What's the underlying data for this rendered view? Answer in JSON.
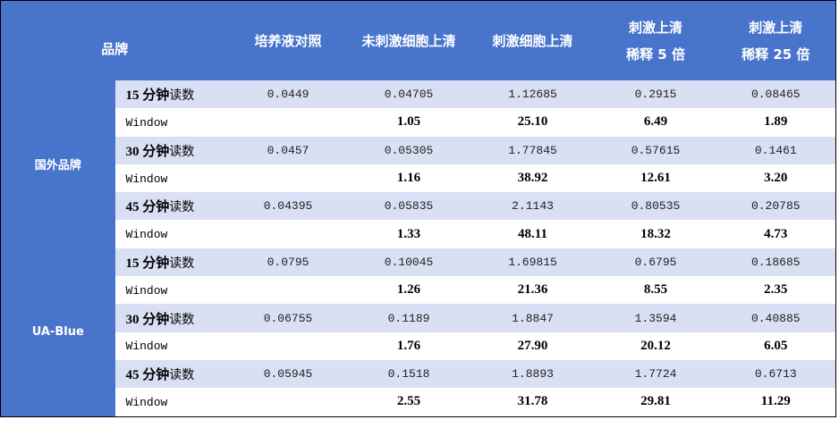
{
  "header": {
    "brand": "品牌",
    "columns": [
      [
        "培养液对照"
      ],
      [
        "未刺激细胞上清"
      ],
      [
        "刺激细胞上清"
      ],
      [
        "刺激上清",
        "稀释 5 倍"
      ],
      [
        "刺激上清",
        "稀释 25 倍"
      ]
    ]
  },
  "colors": {
    "header_bg": "#4874cb",
    "band_bg": "#dae0f3"
  },
  "groups": [
    {
      "brand": "国外品牌",
      "rows": [
        {
          "time": "15 分钟",
          "suffix": "读数",
          "values": [
            "0.0449",
            "0.04705",
            "1.12685",
            "0.2915",
            "0.08465"
          ]
        },
        {
          "window": "Window",
          "values": [
            "",
            "1.05",
            "25.10",
            "6.49",
            "1.89"
          ]
        },
        {
          "time": "30 分钟",
          "suffix": "读数",
          "values": [
            "0.0457",
            "0.05305",
            "1.77845",
            "0.57615",
            "0.1461"
          ]
        },
        {
          "window": "Window",
          "values": [
            "",
            "1.16",
            "38.92",
            "12.61",
            "3.20"
          ]
        },
        {
          "time": "45 分钟",
          "suffix": "读数",
          "values": [
            "0.04395",
            "0.05835",
            "2.1143",
            "0.80535",
            "0.20785"
          ]
        },
        {
          "window": "Window",
          "values": [
            "",
            "1.33",
            "48.11",
            "18.32",
            "4.73"
          ]
        }
      ]
    },
    {
      "brand": "UA-Blue",
      "rows": [
        {
          "time": "15 分钟",
          "suffix": "读数",
          "values": [
            "0.0795",
            "0.10045",
            "1.69815",
            "0.6795",
            "0.18685"
          ]
        },
        {
          "window": "Window",
          "values": [
            "",
            "1.26",
            "21.36",
            "8.55",
            "2.35"
          ]
        },
        {
          "time": "30 分钟",
          "suffix": "读数",
          "values": [
            "0.06755",
            "0.1189",
            "1.8847",
            "1.3594",
            "0.40885"
          ]
        },
        {
          "window": "Window",
          "values": [
            "",
            "1.76",
            "27.90",
            "20.12",
            "6.05"
          ]
        },
        {
          "time": "45 分钟",
          "suffix": "读数",
          "values": [
            "0.05945",
            "0.1518",
            "1.8893",
            "1.7724",
            "0.6713"
          ]
        },
        {
          "window": "Window",
          "values": [
            "",
            "2.55",
            "31.78",
            "29.81",
            "11.29"
          ]
        }
      ]
    }
  ]
}
